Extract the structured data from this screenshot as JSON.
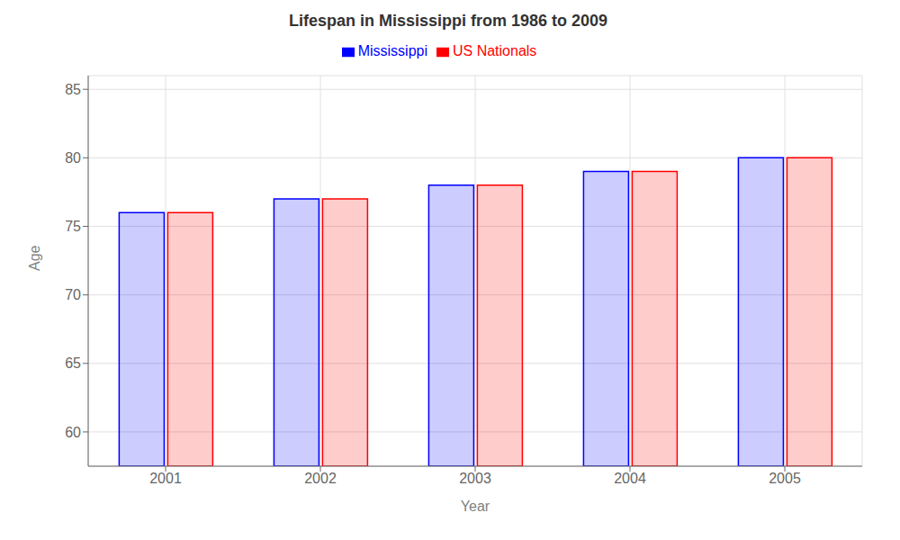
{
  "chart_data": {
    "type": "bar",
    "title": "Lifespan in Mississippi from 1986 to 2009",
    "categories": [
      "2001",
      "2002",
      "2003",
      "2004",
      "2005"
    ],
    "series": [
      {
        "name": "Mississippi",
        "color": "#0000ff",
        "values": [
          76,
          77,
          78,
          79,
          80
        ]
      },
      {
        "name": "US Nationals",
        "color": "#ff0000",
        "values": [
          76,
          77,
          78,
          79,
          80
        ]
      }
    ],
    "x_label": "Year",
    "y_label": "Age",
    "ylim": [
      57.5,
      86
    ],
    "yticks": [
      60,
      65,
      70,
      75,
      80,
      85
    ],
    "grid": true,
    "legend": "top"
  }
}
